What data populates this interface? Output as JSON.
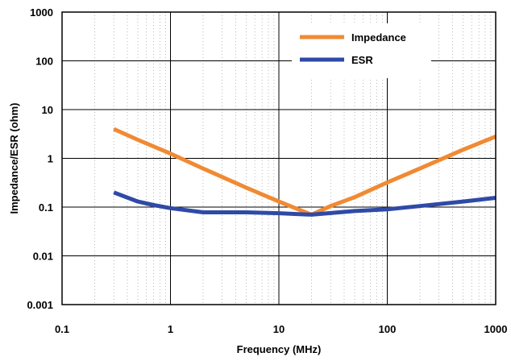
{
  "chart_data": {
    "type": "line",
    "title": "",
    "xlabel": "Frequency  (MHz)",
    "ylabel": "Impedance/ESR (ohm)",
    "xscale": "log",
    "yscale": "log",
    "xlim": [
      0.1,
      1000
    ],
    "ylim": [
      0.001,
      1000
    ],
    "x_tick_labels": [
      "0.1",
      "1",
      "10",
      "100",
      "1000"
    ],
    "y_tick_labels": [
      "0.001",
      "0.01",
      "0.1",
      "1",
      "10",
      "100",
      "1000"
    ],
    "grid": true,
    "legend_position": "top-right",
    "series": [
      {
        "name": "Impedance",
        "color": "#f08a33",
        "points": [
          [
            0.3,
            4.0
          ],
          [
            0.5,
            2.4
          ],
          [
            1,
            1.25
          ],
          [
            2,
            0.62
          ],
          [
            5,
            0.25
          ],
          [
            10,
            0.13
          ],
          [
            20,
            0.07
          ],
          [
            30,
            0.105
          ],
          [
            50,
            0.16
          ],
          [
            100,
            0.32
          ],
          [
            200,
            0.62
          ],
          [
            500,
            1.5
          ],
          [
            1000,
            2.8
          ]
        ]
      },
      {
        "name": "ESR",
        "color": "#2f4aa6",
        "points": [
          [
            0.3,
            0.2
          ],
          [
            0.5,
            0.13
          ],
          [
            0.7,
            0.11
          ],
          [
            1,
            0.095
          ],
          [
            2,
            0.078
          ],
          [
            5,
            0.078
          ],
          [
            10,
            0.075
          ],
          [
            20,
            0.07
          ],
          [
            50,
            0.083
          ],
          [
            100,
            0.09
          ],
          [
            200,
            0.105
          ],
          [
            500,
            0.13
          ],
          [
            1000,
            0.155
          ]
        ]
      }
    ]
  }
}
